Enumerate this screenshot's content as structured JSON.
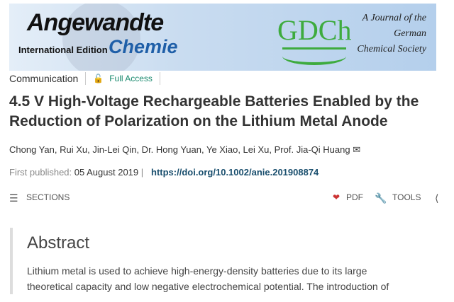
{
  "banner": {
    "title": "Angewandte",
    "subtitle": "International Edition",
    "chemie": "Chemie",
    "society_logo": "GDCh",
    "society": [
      "A Journal of the",
      "German",
      "Chemical Society"
    ]
  },
  "meta": {
    "type": "Communication",
    "access": "Full Access"
  },
  "article": {
    "title": "4.5 V High-Voltage Rechargeable Batteries Enabled by the Reduction of Polarization on the Lithium Metal Anode",
    "authors": "Chong Yan, Rui Xu, Jin-Lei Qin, Dr. Hong Yuan, Ye Xiao, Lei Xu, Prof. Jia-Qi Huang",
    "published_label": "First published:",
    "published_date": "05 August 2019",
    "doi": "https://doi.org/10.1002/anie.201908874"
  },
  "toolbar": {
    "sections": "SECTIONS",
    "pdf": "PDF",
    "tools": "TOOLS"
  },
  "abstract": {
    "heading": "Abstract",
    "lines": [
      "Lithium metal is used to achieve high-energy-density batteries due to its large",
      "theoretical capacity and low negative electrochemical potential. The introduction of"
    ]
  }
}
